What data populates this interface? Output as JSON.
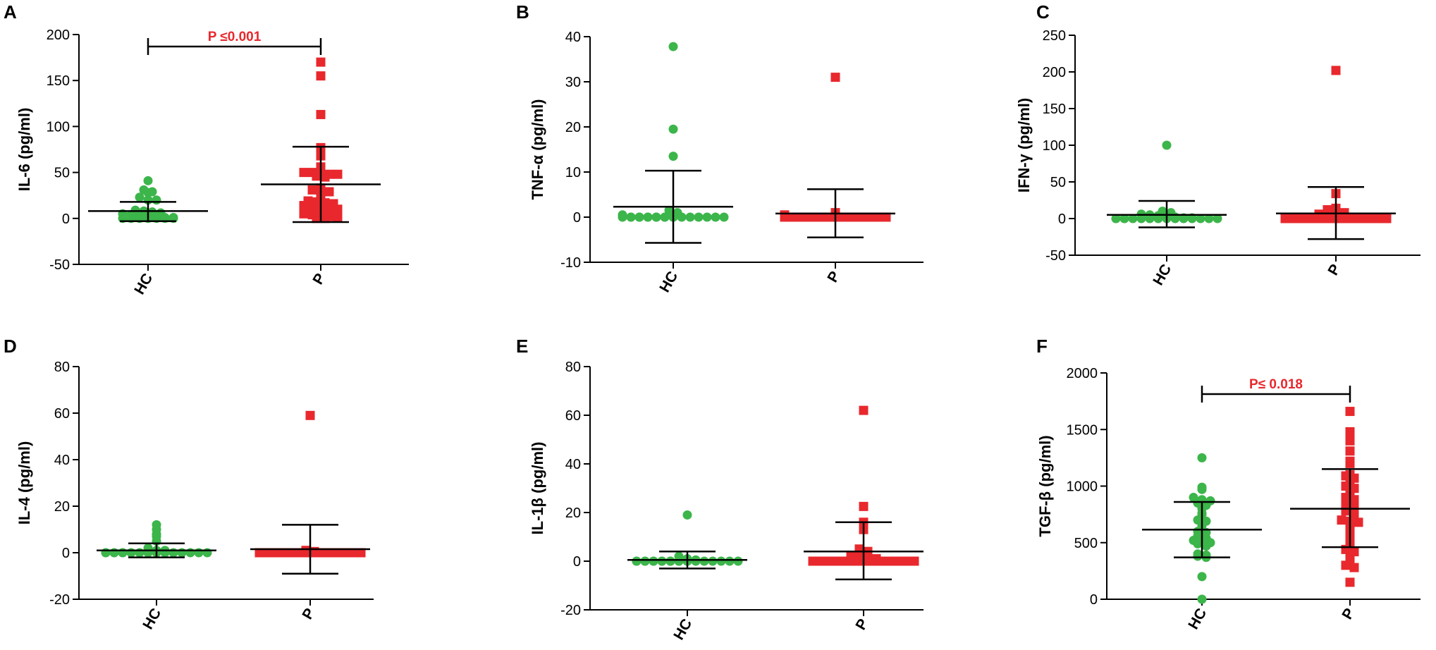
{
  "colors": {
    "hc": "#3cb54a",
    "p": "#e8282d",
    "axis": "#000000",
    "significance": "#e8282d"
  },
  "chart_data": [
    {
      "panel": "A",
      "type": "scatter",
      "ylabel": "IL-6 (pg/ml)",
      "categories": [
        "HC",
        "P"
      ],
      "ylim": [
        -50,
        200
      ],
      "yticks": [
        200,
        150,
        100,
        50,
        0,
        -50
      ],
      "significance": "P ≤0.001",
      "series": [
        {
          "name": "HC",
          "mean": 8,
          "sd_low": -3,
          "sd_high": 18,
          "values": [
            31,
            41,
            28,
            23,
            20,
            20,
            29,
            9,
            8,
            7,
            6,
            5,
            4,
            3,
            2,
            2,
            1,
            1,
            0,
            0,
            0,
            0,
            0,
            0,
            0
          ]
        },
        {
          "name": "P",
          "mean": 37,
          "sd_low": -4,
          "sd_high": 78,
          "values": [
            170,
            155,
            113,
            77,
            68,
            56,
            52,
            50,
            50,
            49,
            48,
            48,
            46,
            45,
            33,
            31,
            30,
            29,
            28,
            20,
            19,
            18,
            17,
            16,
            14,
            13,
            12,
            11,
            10,
            9,
            8,
            7,
            6,
            5,
            4,
            3,
            2,
            1,
            0,
            0
          ]
        }
      ]
    },
    {
      "panel": "B",
      "type": "scatter",
      "ylabel": "TNF-α (pg/ml)",
      "categories": [
        "HC",
        "P"
      ],
      "ylim": [
        -10,
        40
      ],
      "yticks": [
        40,
        30,
        20,
        10,
        0,
        -10
      ],
      "series": [
        {
          "name": "HC",
          "mean": 2.3,
          "sd_low": -5.7,
          "sd_high": 10.3,
          "values": [
            37.8,
            19.5,
            13.5,
            1.5,
            1,
            0.5,
            0,
            0,
            0,
            0,
            0,
            0,
            0,
            0,
            0,
            0,
            0,
            0,
            0,
            0,
            0,
            0,
            0,
            0,
            0
          ]
        },
        {
          "name": "P",
          "mean": 0.8,
          "sd_low": -4.5,
          "sd_high": 6.2,
          "values": [
            31,
            1,
            0.5,
            0,
            0,
            0,
            0,
            0,
            0,
            0,
            0,
            0,
            0,
            0,
            0,
            0,
            0,
            0,
            0,
            0,
            0,
            0,
            0,
            0,
            0
          ]
        }
      ]
    },
    {
      "panel": "C",
      "type": "scatter",
      "ylabel": "IFN-γ (pg/ml)",
      "categories": [
        "HC",
        "P"
      ],
      "ylim": [
        -50,
        250
      ],
      "yticks": [
        250,
        200,
        150,
        100,
        50,
        0,
        -50
      ],
      "series": [
        {
          "name": "HC",
          "mean": 5,
          "sd_low": -12,
          "sd_high": 24,
          "values": [
            100,
            10,
            8,
            6,
            5,
            4,
            3,
            2,
            1,
            1,
            0,
            0,
            0,
            0,
            0,
            0,
            0,
            0,
            0,
            0,
            0,
            0,
            0,
            0,
            0
          ]
        },
        {
          "name": "P",
          "mean": 7,
          "sd_low": -28,
          "sd_high": 43,
          "values": [
            202,
            34,
            14,
            12,
            10,
            8,
            6,
            4,
            3,
            2,
            1,
            0,
            0,
            0,
            0,
            0,
            0,
            0,
            0,
            0,
            0,
            0,
            0,
            0,
            0,
            0,
            0,
            0,
            0,
            0
          ]
        }
      ]
    },
    {
      "panel": "D",
      "type": "scatter",
      "ylabel": "IL-4 (pg/ml)",
      "categories": [
        "HC",
        "P"
      ],
      "ylim": [
        -20,
        80
      ],
      "yticks": [
        80,
        60,
        40,
        20,
        0,
        -20
      ],
      "series": [
        {
          "name": "HC",
          "mean": 1,
          "sd_low": -2,
          "sd_high": 4,
          "values": [
            12,
            10,
            8,
            7,
            5,
            2,
            1,
            1,
            0,
            0,
            0,
            0,
            0,
            0,
            0,
            0,
            0,
            0,
            0,
            0,
            0,
            0,
            0,
            0
          ]
        },
        {
          "name": "P",
          "mean": 1.5,
          "sd_low": -9,
          "sd_high": 12,
          "values": [
            59,
            1,
            0.5,
            0,
            0,
            0,
            0,
            0,
            0,
            0,
            0,
            0,
            0,
            0,
            0,
            0,
            0,
            0,
            0,
            0,
            0,
            0,
            0,
            0
          ]
        }
      ]
    },
    {
      "panel": "E",
      "type": "scatter",
      "ylabel": "IL-1β (pg/ml)",
      "categories": [
        "HC",
        "P"
      ],
      "ylim": [
        -20,
        80
      ],
      "yticks": [
        80,
        60,
        40,
        20,
        0,
        -20
      ],
      "series": [
        {
          "name": "HC",
          "mean": 0.5,
          "sd_low": -3,
          "sd_high": 4,
          "values": [
            19,
            2,
            1,
            0.5,
            0,
            0,
            0,
            0,
            0,
            0,
            0,
            0,
            0,
            0,
            0,
            0,
            0,
            0,
            0,
            0,
            0,
            0,
            0,
            0
          ]
        },
        {
          "name": "P",
          "mean": 4,
          "sd_low": -7.5,
          "sd_high": 16,
          "values": [
            62,
            22.5,
            16,
            13,
            5,
            4,
            3,
            3,
            2,
            2,
            1,
            1,
            0,
            0,
            0,
            0,
            0,
            0,
            0,
            0,
            0,
            0,
            0,
            0,
            0,
            0,
            0,
            0,
            0,
            0
          ]
        }
      ]
    },
    {
      "panel": "F",
      "type": "scatter",
      "ylabel": "TGF-β (pg/ml)",
      "categories": [
        "HC",
        "P"
      ],
      "ylim": [
        0,
        2000
      ],
      "yticks": [
        2000,
        1500,
        1000,
        500,
        0
      ],
      "significance": "P≤ 0.018",
      "series": [
        {
          "name": "HC",
          "mean": 615,
          "sd_low": 370,
          "sd_high": 860,
          "values": [
            1250,
            990,
            970,
            900,
            880,
            870,
            850,
            830,
            800,
            760,
            750,
            700,
            690,
            650,
            610,
            600,
            590,
            560,
            540,
            520,
            510,
            500,
            490,
            470,
            400,
            390,
            380,
            370,
            200,
            0
          ]
        },
        {
          "name": "P",
          "mean": 800,
          "sd_low": 460,
          "sd_high": 1150,
          "values": [
            1660,
            1480,
            1450,
            1400,
            1310,
            1220,
            1200,
            1100,
            1090,
            1070,
            1030,
            1000,
            980,
            950,
            920,
            900,
            880,
            860,
            830,
            800,
            780,
            760,
            700,
            690,
            680,
            660,
            640,
            600,
            560,
            500,
            480,
            440,
            420,
            400,
            350,
            300,
            280,
            150
          ]
        }
      ]
    }
  ]
}
